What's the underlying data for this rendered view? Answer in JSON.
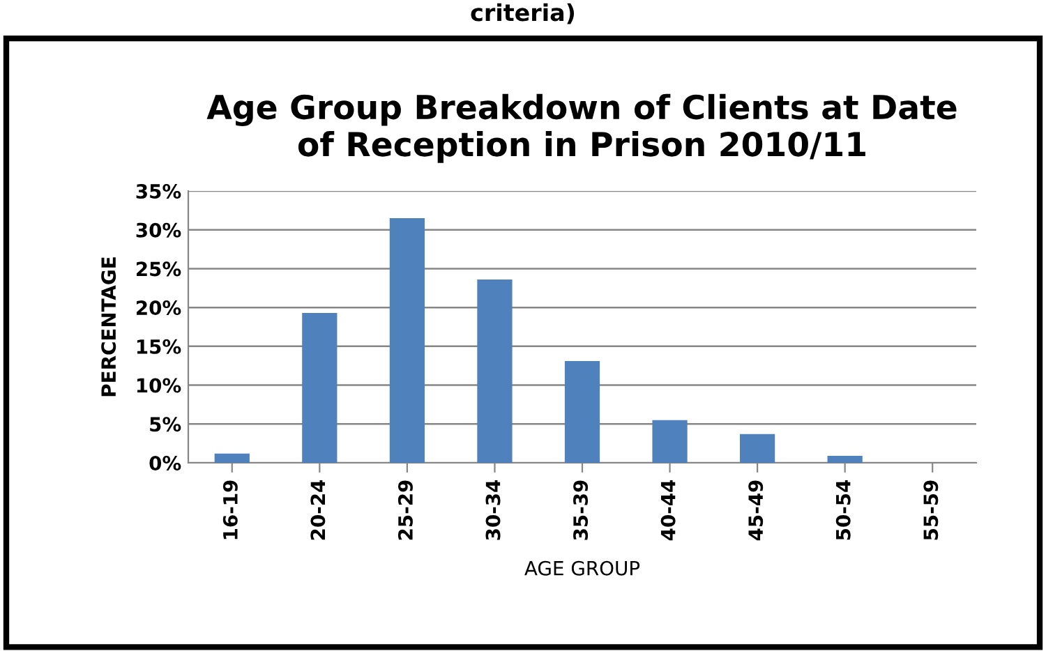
{
  "chart_data": {
    "type": "bar",
    "title": "Age Group Breakdown of Clients at Date\nof Reception in Prison 2010/11",
    "xlabel": "AGE GROUP",
    "ylabel": "PERCENTAGE",
    "annotations": [
      "criteria)"
    ],
    "categories": [
      "16-19",
      "20-24",
      "25-29",
      "30-34",
      "35-39",
      "40-44",
      "45-49",
      "50-54",
      "55-59"
    ],
    "values": [
      1.2,
      19.3,
      31.5,
      23.6,
      13.1,
      5.5,
      3.7,
      0.9,
      0
    ],
    "color": "#4f81bd",
    "ylim": [
      0,
      35
    ],
    "yticks": [
      {
        "value": 0,
        "label": "0%"
      },
      {
        "value": 5,
        "label": "5%"
      },
      {
        "value": 10,
        "label": "10%"
      },
      {
        "value": 15,
        "label": "15%"
      },
      {
        "value": 20,
        "label": "20%"
      },
      {
        "value": 25,
        "label": "25%"
      },
      {
        "value": 30,
        "label": "30%"
      },
      {
        "value": 35,
        "label": "35%"
      }
    ],
    "grid": "y",
    "legend": false
  }
}
